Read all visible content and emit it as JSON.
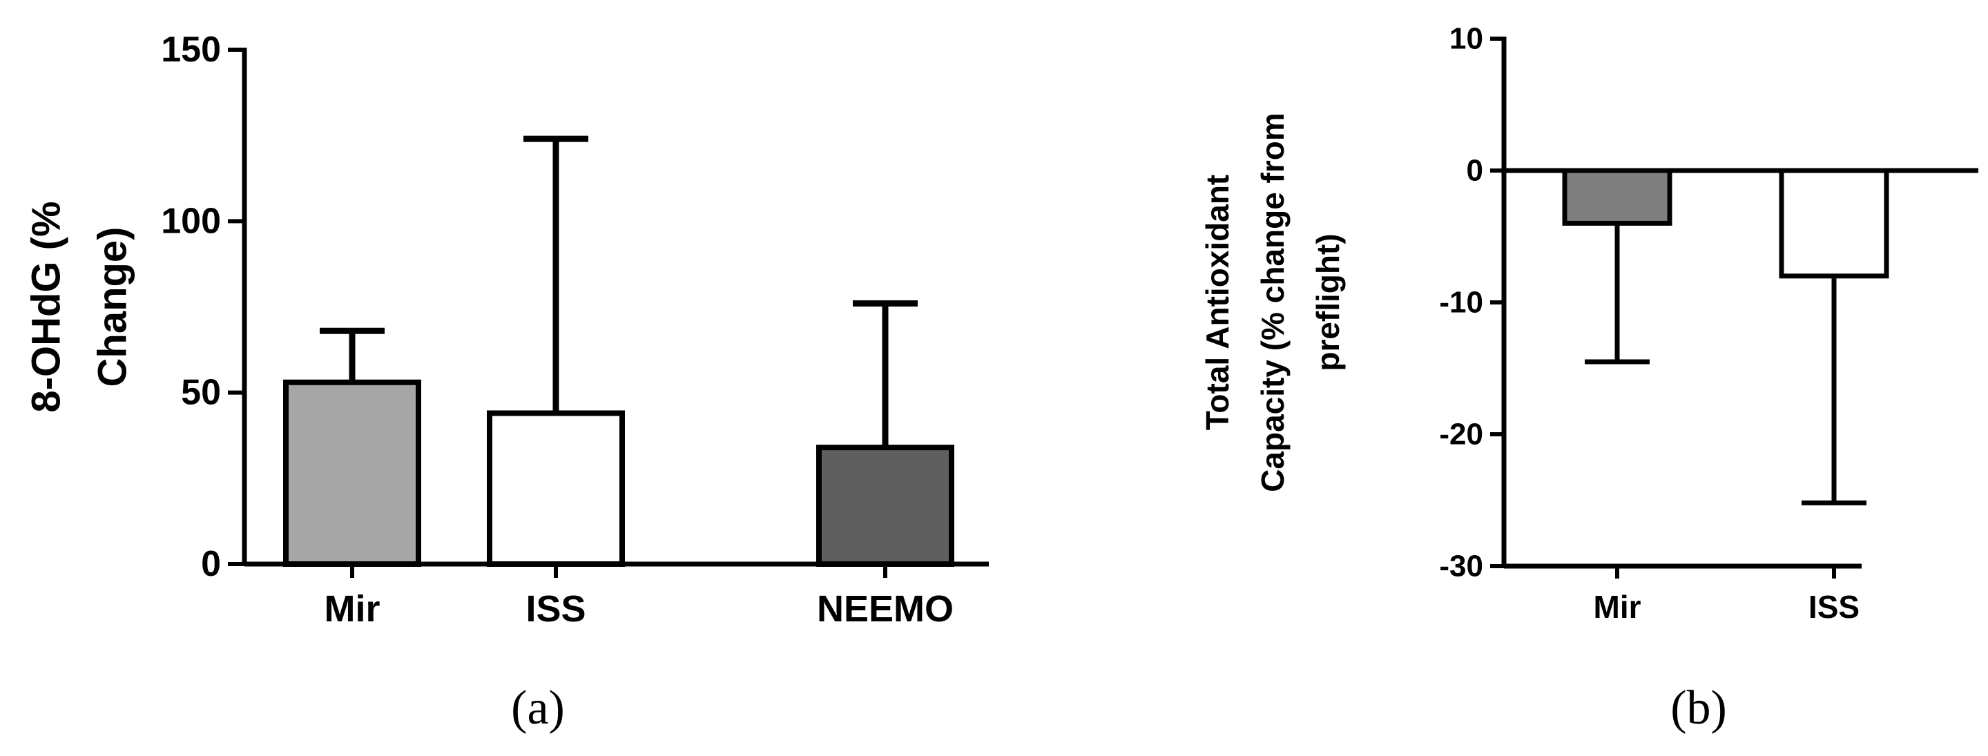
{
  "chart_data": [
    {
      "type": "bar",
      "panel_label": "(a)",
      "ylabel_lines": [
        "8-OHdG (%",
        "Change)"
      ],
      "categories": [
        "Mir",
        "ISS",
        "NEEMO"
      ],
      "values": [
        53,
        44,
        34
      ],
      "error_upper": [
        68,
        124,
        76
      ],
      "bar_colors": [
        "#a6a6a6",
        "#ffffff",
        "#5f5f5f"
      ],
      "ylim": [
        0,
        150
      ],
      "yticks": [
        0,
        50,
        100,
        150
      ],
      "grid": false,
      "legend": "none"
    },
    {
      "type": "bar",
      "panel_label": "(b)",
      "ylabel_lines": [
        "Total Antioxidant",
        "Capacity (% change from",
        "preflight)"
      ],
      "categories": [
        "Mir",
        "ISS"
      ],
      "values": [
        -4,
        -8
      ],
      "error_lower": [
        -14.5,
        -25.2
      ],
      "bar_colors": [
        "#7f7f7f",
        "#ffffff"
      ],
      "ylim": [
        -30,
        10
      ],
      "yticks": [
        -30,
        -20,
        -10,
        0,
        10
      ],
      "grid": false,
      "legend": "none"
    }
  ]
}
